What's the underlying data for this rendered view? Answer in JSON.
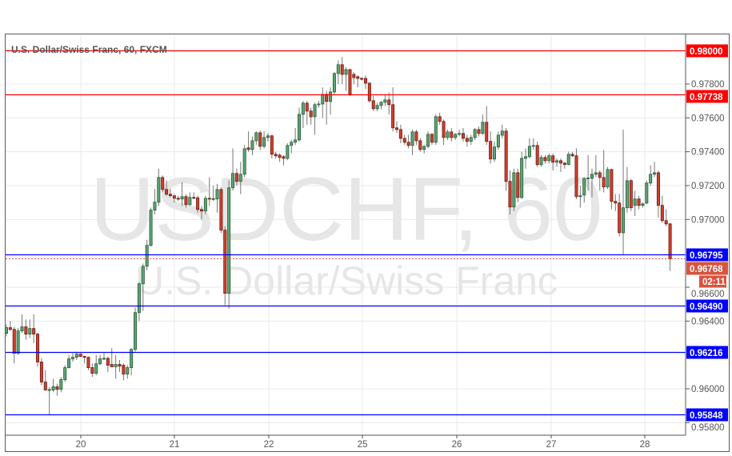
{
  "header": {
    "title": "U.S. Dollar/Swiss Franc, 60, FXCM"
  },
  "watermark": {
    "symbol": "USDCHF, 60",
    "name": "U.S. Dollar/Swiss Franc"
  },
  "countdown": "02:11",
  "colors": {
    "up": "#5aa672",
    "down": "#d0412f",
    "resistance": "#ff0000",
    "support": "#0000ff",
    "current": "#d9533f",
    "grid": "#e8e8e8"
  },
  "chart_data": {
    "type": "candlestick",
    "title": "U.S. Dollar/Swiss Franc, 60, FXCM",
    "interval": "60",
    "ylim": [
      0.9577,
      0.9819
    ],
    "grid": true,
    "x_tick_labels": [
      "20",
      "21",
      "22",
      "25",
      "26",
      "27",
      "28"
    ],
    "y_tick_labels": [
      "0.97800",
      "0.97600",
      "0.97400",
      "0.97200",
      "0.97000",
      "0.96600",
      "0.96400",
      "0.96000",
      "0.95800"
    ],
    "y_ticks": [
      0.978,
      0.976,
      0.974,
      0.972,
      0.97,
      0.966,
      0.964,
      0.96,
      0.958
    ],
    "horizontal_lines": [
      {
        "value": 0.98,
        "label": "0.98000",
        "color": "#ff0000"
      },
      {
        "value": 0.97738,
        "label": "0.97738",
        "color": "#ff0000"
      },
      {
        "value": 0.96795,
        "label": "0.96795",
        "color": "#0000ff"
      },
      {
        "value": 0.9649,
        "label": "0.96490",
        "color": "#0000ff"
      },
      {
        "value": 0.96216,
        "label": "0.96216",
        "color": "#0000ff"
      },
      {
        "value": 0.95848,
        "label": "0.95848",
        "color": "#0000ff"
      }
    ],
    "current_price": {
      "value": 0.96768,
      "label": "0.96768"
    },
    "ohlc_fields": [
      "open",
      "high",
      "low",
      "close"
    ],
    "candles": [
      [
        0.96328,
        0.9638,
        0.9631,
        0.96361
      ],
      [
        0.96361,
        0.964,
        0.9634,
        0.96351
      ],
      [
        0.96351,
        0.96365,
        0.9615,
        0.9621
      ],
      [
        0.9621,
        0.9636,
        0.962,
        0.96342
      ],
      [
        0.96342,
        0.9644,
        0.9633,
        0.96366
      ],
      [
        0.96366,
        0.9641,
        0.9629,
        0.96323
      ],
      [
        0.96323,
        0.9641,
        0.963,
        0.96356
      ],
      [
        0.96356,
        0.9644,
        0.9627,
        0.96323
      ],
      [
        0.96323,
        0.9633,
        0.9613,
        0.96158
      ],
      [
        0.96158,
        0.9618,
        0.9602,
        0.9604
      ],
      [
        0.9604,
        0.9611,
        0.9599,
        0.95993
      ],
      [
        0.95993,
        0.9601,
        0.95848,
        0.95995
      ],
      [
        0.95993,
        0.9606,
        0.9598,
        0.96012
      ],
      [
        0.96012,
        0.9603,
        0.9596,
        0.95997
      ],
      [
        0.95997,
        0.9607,
        0.9598,
        0.96054
      ],
      [
        0.96054,
        0.9614,
        0.9604,
        0.96125
      ],
      [
        0.96125,
        0.962,
        0.9612,
        0.96177
      ],
      [
        0.96177,
        0.9621,
        0.9616,
        0.96186
      ],
      [
        0.96186,
        0.9622,
        0.9617,
        0.96205
      ],
      [
        0.96205,
        0.9621,
        0.9619,
        0.96191
      ],
      [
        0.96191,
        0.96195,
        0.9615,
        0.96186
      ],
      [
        0.96186,
        0.9619,
        0.9611,
        0.96125
      ],
      [
        0.96125,
        0.9615,
        0.9607,
        0.96092
      ],
      [
        0.96092,
        0.962,
        0.9608,
        0.96148
      ],
      [
        0.96148,
        0.962,
        0.9614,
        0.96177
      ],
      [
        0.96177,
        0.9621,
        0.9617,
        0.9618
      ],
      [
        0.9618,
        0.9619,
        0.961,
        0.96139
      ],
      [
        0.96144,
        0.9624,
        0.9614,
        0.9613
      ],
      [
        0.9613,
        0.962,
        0.9606,
        0.96144
      ],
      [
        0.96144,
        0.9617,
        0.961,
        0.96134
      ],
      [
        0.96139,
        0.9615,
        0.9605,
        0.96087
      ],
      [
        0.96087,
        0.9614,
        0.9606,
        0.96125
      ],
      [
        0.96125,
        0.9624,
        0.9608,
        0.96233
      ],
      [
        0.96233,
        0.9648,
        0.9622,
        0.9645
      ],
      [
        0.9645,
        0.9663,
        0.964,
        0.9662
      ],
      [
        0.9662,
        0.9674,
        0.9646,
        0.96724
      ],
      [
        0.96724,
        0.9688,
        0.967,
        0.96847
      ],
      [
        0.96847,
        0.9707,
        0.9684,
        0.97055
      ],
      [
        0.97055,
        0.9718,
        0.9703,
        0.97102
      ],
      [
        0.97102,
        0.973,
        0.9708,
        0.97248
      ],
      [
        0.97248,
        0.9726,
        0.9716,
        0.97177
      ],
      [
        0.97177,
        0.9723,
        0.9714,
        0.97149
      ],
      [
        0.97149,
        0.9718,
        0.9713,
        0.9714
      ],
      [
        0.9714,
        0.9715,
        0.971,
        0.97125
      ],
      [
        0.97125,
        0.9714,
        0.9711,
        0.97121
      ],
      [
        0.97121,
        0.9722,
        0.9708,
        0.97135
      ],
      [
        0.97135,
        0.9715,
        0.9707,
        0.97088
      ],
      [
        0.97088,
        0.9716,
        0.9708,
        0.9713
      ],
      [
        0.9713,
        0.9716,
        0.9712,
        0.97128
      ],
      [
        0.97128,
        0.9714,
        0.9704,
        0.97059
      ],
      [
        0.97059,
        0.9708,
        0.97,
        0.9705
      ],
      [
        0.9705,
        0.9714,
        0.9703,
        0.97125
      ],
      [
        0.97125,
        0.9725,
        0.9708,
        0.97121
      ],
      [
        0.97121,
        0.972,
        0.9711,
        0.97123
      ],
      [
        0.97121,
        0.9721,
        0.9704,
        0.97177
      ],
      [
        0.97177,
        0.9719,
        0.9692,
        0.96937
      ],
      [
        0.96937,
        0.9696,
        0.96493,
        0.96564
      ],
      [
        0.96564,
        0.9723,
        0.96474,
        0.97187
      ],
      [
        0.97187,
        0.9742,
        0.9717,
        0.97272
      ],
      [
        0.97272,
        0.973,
        0.972,
        0.97225
      ],
      [
        0.97225,
        0.9734,
        0.9715,
        0.97267
      ],
      [
        0.97267,
        0.9744,
        0.9725,
        0.97418
      ],
      [
        0.97423,
        0.9752,
        0.974,
        0.97413
      ],
      [
        0.97413,
        0.9749,
        0.9738,
        0.97465
      ],
      [
        0.97465,
        0.9752,
        0.9744,
        0.97512
      ],
      [
        0.97512,
        0.97525,
        0.9741,
        0.97432
      ],
      [
        0.97432,
        0.9752,
        0.9742,
        0.97484
      ],
      [
        0.97484,
        0.9751,
        0.9746,
        0.97494
      ],
      [
        0.97494,
        0.975,
        0.9736,
        0.97385
      ],
      [
        0.97385,
        0.974,
        0.9736,
        0.97376
      ],
      [
        0.9738,
        0.9739,
        0.9734,
        0.97366
      ],
      [
        0.97371,
        0.9738,
        0.9732,
        0.97361
      ],
      [
        0.97361,
        0.9745,
        0.9735,
        0.97437
      ],
      [
        0.97437,
        0.9747,
        0.9739,
        0.97456
      ],
      [
        0.97456,
        0.9754,
        0.9744,
        0.9747
      ],
      [
        0.9747,
        0.9766,
        0.9746,
        0.97621
      ],
      [
        0.97621,
        0.977,
        0.9754,
        0.97687
      ],
      [
        0.97687,
        0.977,
        0.9756,
        0.9764
      ],
      [
        0.9764,
        0.9766,
        0.9756,
        0.97607
      ],
      [
        0.97607,
        0.9769,
        0.975,
        0.97678
      ],
      [
        0.97678,
        0.977,
        0.9766,
        0.97682
      ],
      [
        0.97682,
        0.9778,
        0.976,
        0.97739
      ],
      [
        0.97739,
        0.9776,
        0.9756,
        0.97697
      ],
      [
        0.97697,
        0.9778,
        0.9762,
        0.97753
      ],
      [
        0.97753,
        0.9787,
        0.9774,
        0.97862
      ],
      [
        0.97862,
        0.9794,
        0.978,
        0.97914
      ],
      [
        0.97914,
        0.9796,
        0.978,
        0.97857
      ],
      [
        0.97857,
        0.979,
        0.9776,
        0.97885
      ],
      [
        0.97885,
        0.9789,
        0.9773,
        0.97739
      ],
      [
        0.97857,
        0.9787,
        0.978,
        0.97838
      ],
      [
        0.97843,
        0.9785,
        0.9778,
        0.97833
      ],
      [
        0.97833,
        0.9784,
        0.9782,
        0.9783
      ],
      [
        0.97833,
        0.9785,
        0.9777,
        0.97805
      ],
      [
        0.97805,
        0.9781,
        0.9769,
        0.97701
      ],
      [
        0.97701,
        0.9773,
        0.9764,
        0.97654
      ],
      [
        0.97654,
        0.9769,
        0.9764,
        0.97673
      ],
      [
        0.97673,
        0.977,
        0.9765,
        0.97692
      ],
      [
        0.97692,
        0.9774,
        0.9767,
        0.97706
      ],
      [
        0.97706,
        0.9775,
        0.9762,
        0.97678
      ],
      [
        0.97678,
        0.9778,
        0.9752,
        0.97541
      ],
      [
        0.97541,
        0.9758,
        0.9751,
        0.97531
      ],
      [
        0.97531,
        0.9756,
        0.9745,
        0.97479
      ],
      [
        0.97479,
        0.975,
        0.9744,
        0.97456
      ],
      [
        0.97456,
        0.975,
        0.9742,
        0.97437
      ],
      [
        0.97437,
        0.9753,
        0.9738,
        0.97517
      ],
      [
        0.97517,
        0.9753,
        0.9744,
        0.97465
      ],
      [
        0.97465,
        0.9748,
        0.974,
        0.97413
      ],
      [
        0.97413,
        0.9744,
        0.9739,
        0.97432
      ],
      [
        0.97432,
        0.9752,
        0.9742,
        0.97503
      ],
      [
        0.97503,
        0.9751,
        0.9744,
        0.97456
      ],
      [
        0.97456,
        0.9762,
        0.9744,
        0.97607
      ],
      [
        0.97607,
        0.9763,
        0.9756,
        0.97579
      ],
      [
        0.97579,
        0.9759,
        0.9744,
        0.97484
      ],
      [
        0.97484,
        0.9753,
        0.9747,
        0.97517
      ],
      [
        0.97517,
        0.9754,
        0.9746,
        0.97484
      ],
      [
        0.97484,
        0.9751,
        0.9747,
        0.97503
      ],
      [
        0.97503,
        0.9753,
        0.9749,
        0.97508
      ],
      [
        0.97508,
        0.9754,
        0.9746,
        0.97479
      ],
      [
        0.97479,
        0.975,
        0.9743,
        0.97461
      ],
      [
        0.97461,
        0.975,
        0.9744,
        0.97484
      ],
      [
        0.97484,
        0.9754,
        0.9747,
        0.97531
      ],
      [
        0.97531,
        0.9755,
        0.9749,
        0.97508
      ],
      [
        0.97508,
        0.9762,
        0.975,
        0.97574
      ],
      [
        0.97574,
        0.9767,
        0.9744,
        0.97461
      ],
      [
        0.97461,
        0.9752,
        0.9733,
        0.97357
      ],
      [
        0.97357,
        0.9746,
        0.9734,
        0.97428
      ],
      [
        0.97428,
        0.9752,
        0.9741,
        0.97498
      ],
      [
        0.97498,
        0.9756,
        0.9748,
        0.97522
      ],
      [
        0.97522,
        0.9754,
        0.9717,
        0.97225
      ],
      [
        0.97225,
        0.9729,
        0.9703,
        0.97074
      ],
      [
        0.97074,
        0.973,
        0.9705,
        0.97276
      ],
      [
        0.97276,
        0.973,
        0.971,
        0.9713
      ],
      [
        0.9713,
        0.974,
        0.9712,
        0.97361
      ],
      [
        0.97361,
        0.9742,
        0.973,
        0.97371
      ],
      [
        0.97371,
        0.9748,
        0.9736,
        0.97432
      ],
      [
        0.97432,
        0.9748,
        0.9741,
        0.97437
      ],
      [
        0.97437,
        0.9746,
        0.9731,
        0.97324
      ],
      [
        0.97324,
        0.9738,
        0.9731,
        0.97366
      ],
      [
        0.97366,
        0.9738,
        0.9733,
        0.97347
      ],
      [
        0.97347,
        0.9739,
        0.9733,
        0.97376
      ],
      [
        0.97376,
        0.9739,
        0.9729,
        0.97338
      ],
      [
        0.97338,
        0.9736,
        0.9731,
        0.97347
      ],
      [
        0.97347,
        0.9736,
        0.9728,
        0.97333
      ],
      [
        0.97333,
        0.9734,
        0.973,
        0.97324
      ],
      [
        0.97324,
        0.974,
        0.9732,
        0.97385
      ],
      [
        0.97385,
        0.974,
        0.9737,
        0.97376
      ],
      [
        0.97376,
        0.9742,
        0.9712,
        0.97135
      ],
      [
        0.97135,
        0.972,
        0.9707,
        0.9714
      ],
      [
        0.97144,
        0.9725,
        0.971,
        0.97243
      ],
      [
        0.97243,
        0.9738,
        0.9717,
        0.97245
      ],
      [
        0.97243,
        0.973,
        0.9713,
        0.97267
      ],
      [
        0.97267,
        0.9738,
        0.9725,
        0.97276
      ],
      [
        0.97276,
        0.9729,
        0.9717,
        0.97248
      ],
      [
        0.97248,
        0.9741,
        0.9716,
        0.97192
      ],
      [
        0.97192,
        0.9731,
        0.9718,
        0.97295
      ],
      [
        0.97295,
        0.973,
        0.9706,
        0.97107
      ],
      [
        0.97107,
        0.9715,
        0.9705,
        0.97097
      ],
      [
        0.97097,
        0.9715,
        0.969,
        0.96922
      ],
      [
        0.96922,
        0.9753,
        0.96795,
        0.97069
      ],
      [
        0.97069,
        0.9731,
        0.9704,
        0.97229
      ],
      [
        0.97229,
        0.9724,
        0.9705,
        0.97069
      ],
      [
        0.97083,
        0.9717,
        0.9702,
        0.97121
      ],
      [
        0.97121,
        0.9714,
        0.9706,
        0.97083
      ],
      [
        0.97083,
        0.971,
        0.9707,
        0.97092
      ],
      [
        0.97097,
        0.9723,
        0.9709,
        0.97215
      ],
      [
        0.97215,
        0.9732,
        0.972,
        0.97267
      ],
      [
        0.97267,
        0.9734,
        0.9725,
        0.97276
      ],
      [
        0.97276,
        0.9729,
        0.9701,
        0.97083
      ],
      [
        0.97083,
        0.9714,
        0.9698,
        0.96993
      ],
      [
        0.96993,
        0.9706,
        0.9696,
        0.96974
      ],
      [
        0.96974,
        0.9698,
        0.96696,
        0.96768
      ]
    ]
  }
}
